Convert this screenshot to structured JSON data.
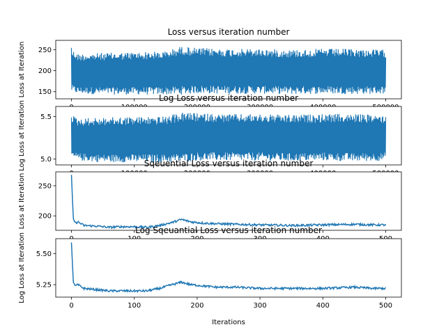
{
  "chart_data": [
    {
      "type": "line",
      "title": "Loss versus iteration number",
      "xlabel": "",
      "ylabel": "Loss at Iteration",
      "xlim": [
        -25000,
        525000
      ],
      "ylim": [
        133,
        272
      ],
      "xticks": [
        0,
        100000,
        200000,
        300000,
        400000,
        500000
      ],
      "xtick_labels": [
        "0",
        "100000",
        "200000",
        "300000",
        "400000",
        "500000"
      ],
      "yticks": [
        150,
        200,
        250
      ],
      "ytick_labels": [
        "150",
        "200",
        "250"
      ],
      "grid": false,
      "color": "#1f77b4",
      "series": [
        {
          "x": [
            0,
            1000,
            10000,
            50000,
            100000,
            150000,
            175000,
            200000,
            250000,
            300000,
            350000,
            400000,
            450000,
            500000
          ],
          "y_max": [
            268,
            250,
            240,
            242,
            244,
            246,
            258,
            254,
            252,
            252,
            250,
            252,
            252,
            250
          ],
          "y_min": [
            150,
            148,
            145,
            143,
            143,
            143,
            143,
            146,
            145,
            145,
            144,
            145,
            144,
            145
          ]
        }
      ]
    },
    {
      "type": "line",
      "title": "Log Loss versus iteration number",
      "xlabel": "",
      "ylabel": "Log Loss at Iteration",
      "xlim": [
        -25000,
        525000
      ],
      "ylim": [
        4.93,
        5.62
      ],
      "xticks": [
        0,
        100000,
        200000,
        300000,
        400000,
        500000
      ],
      "xtick_labels": [
        "0",
        "100000",
        "200000",
        "300000",
        "400000",
        "500000"
      ],
      "yticks": [
        5.0,
        5.5
      ],
      "ytick_labels": [
        "5.0",
        "5.5"
      ],
      "grid": false,
      "color": "#1f77b4",
      "series": [
        {
          "x": [
            0,
            1000,
            10000,
            50000,
            100000,
            150000,
            175000,
            200000,
            250000,
            300000,
            350000,
            400000,
            450000,
            500000
          ],
          "y_max": [
            5.59,
            5.52,
            5.48,
            5.49,
            5.5,
            5.5,
            5.55,
            5.54,
            5.53,
            5.53,
            5.52,
            5.53,
            5.53,
            5.52
          ],
          "y_min": [
            5.01,
            5.0,
            4.98,
            4.96,
            4.96,
            4.96,
            4.96,
            4.98,
            4.98,
            4.98,
            4.97,
            4.98,
            4.97,
            4.98
          ]
        }
      ]
    },
    {
      "type": "line",
      "title": "Sqeuential Loss versus iteration number",
      "xlabel": "",
      "ylabel": "Loss at Iteration",
      "xlim": [
        -25,
        525
      ],
      "ylim": [
        176,
        273
      ],
      "xticks": [
        0,
        100,
        200,
        300,
        400,
        500
      ],
      "xtick_labels": [
        "0",
        "100",
        "200",
        "300",
        "400",
        "500"
      ],
      "yticks": [
        200,
        250
      ],
      "ytick_labels": [
        "200",
        "250"
      ],
      "grid": false,
      "color": "#1f77b4",
      "series": [
        {
          "x": [
            0,
            3,
            6,
            10,
            20,
            40,
            60,
            80,
            100,
            120,
            140,
            160,
            175,
            190,
            210,
            230,
            260,
            300,
            350,
            400,
            450,
            480,
            500
          ],
          "y": [
            268,
            195,
            188,
            190,
            184,
            183,
            181,
            182,
            182,
            181,
            184,
            189,
            194,
            190,
            188,
            187,
            186,
            185,
            184,
            185,
            186,
            185,
            185
          ]
        }
      ]
    },
    {
      "type": "line",
      "title": "Log  Sqeuantial Loss versus iteration number",
      "xlabel": "Iterations",
      "ylabel": "Log Loss at Iteration",
      "xlim": [
        -25,
        525
      ],
      "ylim": [
        5.15,
        5.62
      ],
      "xticks": [
        0,
        100,
        200,
        300,
        400,
        500
      ],
      "xtick_labels": [
        "0",
        "100",
        "200",
        "300",
        "400",
        "500"
      ],
      "yticks": [
        5.25,
        5.5
      ],
      "ytick_labels": [
        "5.25",
        "5.50"
      ],
      "grid": false,
      "color": "#1f77b4",
      "series": [
        {
          "x": [
            0,
            3,
            6,
            10,
            20,
            40,
            60,
            80,
            100,
            120,
            140,
            160,
            175,
            190,
            210,
            230,
            260,
            300,
            350,
            400,
            450,
            480,
            500
          ],
          "y": [
            5.59,
            5.27,
            5.24,
            5.25,
            5.22,
            5.21,
            5.2,
            5.2,
            5.2,
            5.2,
            5.22,
            5.25,
            5.27,
            5.25,
            5.24,
            5.23,
            5.23,
            5.22,
            5.22,
            5.22,
            5.23,
            5.22,
            5.22
          ]
        }
      ]
    }
  ]
}
